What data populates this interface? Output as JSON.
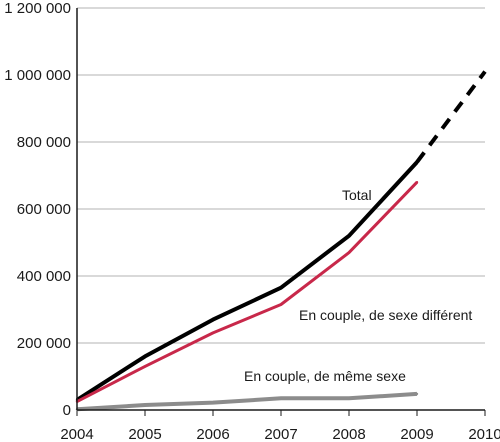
{
  "chart_data": {
    "type": "line",
    "x": [
      2004,
      2005,
      2006,
      2007,
      2008,
      2009,
      2010
    ],
    "x_tick_labels": [
      "2004",
      "2005",
      "2006",
      "2007",
      "2008",
      "2009",
      "2010"
    ],
    "ylim": [
      0,
      1200000
    ],
    "y_ticks": [
      0,
      200000,
      400000,
      600000,
      800000,
      1000000,
      1200000
    ],
    "y_tick_labels": [
      "0",
      "200 000",
      "400 000",
      "600 000",
      "800 000",
      "1 000 000",
      "1 200 000"
    ],
    "grid": "horizontal",
    "series": [
      {
        "name": "Total",
        "color": "#000000",
        "x": [
          2004,
          2005,
          2006,
          2007,
          2008,
          2009
        ],
        "values": [
          30000,
          160000,
          270000,
          365000,
          520000,
          740000
        ],
        "projection": {
          "x": [
            2009,
            2010
          ],
          "values": [
            740000,
            1010000
          ],
          "style": "dashed"
        }
      },
      {
        "name": "En couple, de sexe différent",
        "color": "#c8284a",
        "x": [
          2004,
          2005,
          2006,
          2007,
          2008,
          2009
        ],
        "values": [
          25000,
          130000,
          230000,
          315000,
          470000,
          680000
        ]
      },
      {
        "name": "En couple, de même sexe",
        "color": "#8c8c8c",
        "x": [
          2004,
          2005,
          2006,
          2007,
          2008,
          2009
        ],
        "values": [
          2000,
          15000,
          22000,
          35000,
          35000,
          48000
        ]
      }
    ]
  }
}
